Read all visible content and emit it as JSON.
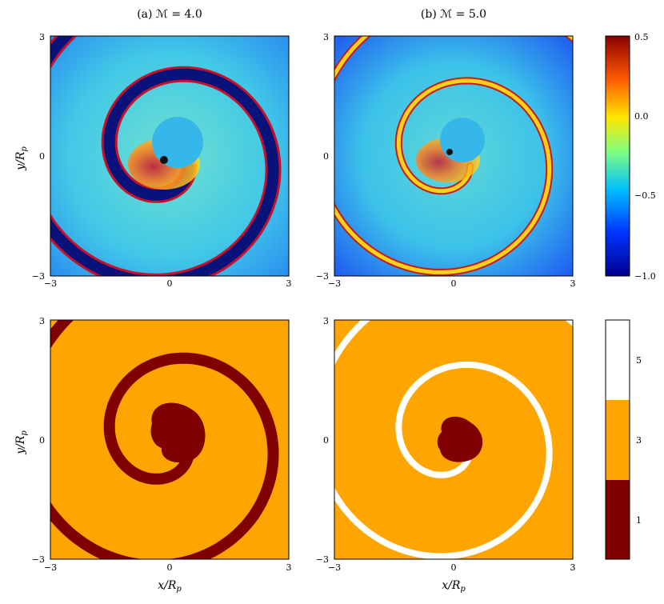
{
  "panels": {
    "a_title": "(a) ℳ = 4.0",
    "b_title": "(b) ℳ = 5.0"
  },
  "axes": {
    "ylabel": "y/R",
    "ylabel_sub": "p",
    "xlabel": "x/R",
    "xlabel_sub": "p",
    "ticks": [
      "−3",
      "0",
      "3"
    ]
  },
  "colorbar_top": {
    "ticks": [
      "0.5",
      "0.0",
      "−0.5",
      "−1.0"
    ]
  },
  "colorbar_bottom": {
    "ticks": [
      "5",
      "3",
      "1"
    ]
  },
  "colors": {
    "spiral_dark_blue": "#07137a",
    "bg_cyan": "#3ec8e6",
    "orange": "#ffa500",
    "dark_red": "#800000",
    "white": "#ffffff"
  }
}
